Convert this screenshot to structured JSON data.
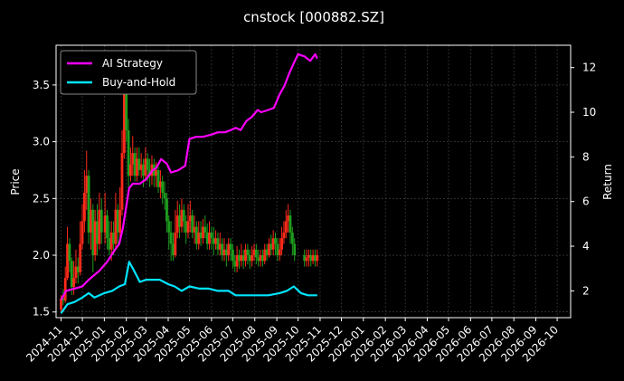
{
  "chart_data": {
    "type": "line",
    "title": "cnstock [000882.SZ]",
    "ylabel_left": "Price",
    "ylabel_right": "Return",
    "y_left_ticks": [
      "1.5",
      "2.0",
      "2.5",
      "3.0",
      "3.5"
    ],
    "y_left_range": [
      1.45,
      3.85
    ],
    "y_right_ticks": [
      "2",
      "4",
      "6",
      "8",
      "10",
      "12"
    ],
    "y_right_range": [
      0.8,
      13.0
    ],
    "x_ticks": [
      "2024-11",
      "2024-12",
      "2025-01",
      "2025-02",
      "2025-03",
      "2025-04",
      "2025-05",
      "2025-06",
      "2025-07",
      "2025-08",
      "2025-09",
      "2025-10",
      "2025-11",
      "2025-12",
      "2026-01",
      "2026-02",
      "2026-03",
      "2026-04",
      "2026-05",
      "2026-06",
      "2026-07",
      "2026-08",
      "2026-09",
      "2026-10"
    ],
    "x_range": [
      "2024-10-25",
      "2026-10-20"
    ],
    "grid": true,
    "legend_position": "top-left",
    "colors": {
      "up": "#ff2a1a",
      "down": "#1e9e1e",
      "ai": "#ff00ff",
      "bh": "#00e5ff",
      "grid": "#4a4a4a"
    },
    "series": [
      {
        "name": "AI Strategy",
        "axis": "right",
        "points": [
          [
            "2024-11-01",
            1.6
          ],
          [
            "2024-11-08",
            2.0
          ],
          [
            "2024-11-20",
            2.1
          ],
          [
            "2024-12-01",
            2.2
          ],
          [
            "2024-12-10",
            2.5
          ],
          [
            "2024-12-25",
            2.9
          ],
          [
            "2025-01-05",
            3.3
          ],
          [
            "2025-01-15",
            3.8
          ],
          [
            "2025-01-22",
            4.1
          ],
          [
            "2025-01-27",
            4.8
          ],
          [
            "2025-02-05",
            6.6
          ],
          [
            "2025-02-10",
            6.8
          ],
          [
            "2025-02-20",
            6.8
          ],
          [
            "2025-03-01",
            7.0
          ],
          [
            "2025-03-10",
            7.4
          ],
          [
            "2025-03-15",
            7.5
          ],
          [
            "2025-03-22",
            7.9
          ],
          [
            "2025-03-30",
            7.7
          ],
          [
            "2025-04-05",
            7.3
          ],
          [
            "2025-04-15",
            7.4
          ],
          [
            "2025-04-25",
            7.6
          ],
          [
            "2025-05-01",
            8.8
          ],
          [
            "2025-05-10",
            8.9
          ],
          [
            "2025-05-20",
            8.9
          ],
          [
            "2025-06-01",
            9.0
          ],
          [
            "2025-06-10",
            9.1
          ],
          [
            "2025-06-20",
            9.1
          ],
          [
            "2025-06-28",
            9.2
          ],
          [
            "2025-07-05",
            9.3
          ],
          [
            "2025-07-12",
            9.2
          ],
          [
            "2025-07-20",
            9.6
          ],
          [
            "2025-07-28",
            9.8
          ],
          [
            "2025-08-05",
            10.1
          ],
          [
            "2025-08-10",
            10.0
          ],
          [
            "2025-08-20",
            10.1
          ],
          [
            "2025-08-28",
            10.2
          ],
          [
            "2025-09-05",
            10.8
          ],
          [
            "2025-09-12",
            11.2
          ],
          [
            "2025-09-18",
            11.7
          ],
          [
            "2025-09-25",
            12.2
          ],
          [
            "2025-10-01",
            12.6
          ],
          [
            "2025-10-10",
            12.5
          ],
          [
            "2025-10-18",
            12.3
          ],
          [
            "2025-10-25",
            12.6
          ],
          [
            "2025-10-28",
            12.4
          ]
        ]
      },
      {
        "name": "Buy-and-Hold",
        "axis": "right",
        "points": [
          [
            "2024-11-01",
            1.0
          ],
          [
            "2024-11-10",
            1.4
          ],
          [
            "2024-11-20",
            1.5
          ],
          [
            "2024-12-01",
            1.7
          ],
          [
            "2024-12-10",
            1.9
          ],
          [
            "2024-12-18",
            1.7
          ],
          [
            "2025-01-01",
            1.9
          ],
          [
            "2025-01-12",
            2.0
          ],
          [
            "2025-01-22",
            2.2
          ],
          [
            "2025-01-30",
            2.3
          ],
          [
            "2025-02-05",
            3.3
          ],
          [
            "2025-02-12",
            2.9
          ],
          [
            "2025-02-20",
            2.4
          ],
          [
            "2025-03-01",
            2.5
          ],
          [
            "2025-03-10",
            2.5
          ],
          [
            "2025-03-20",
            2.5
          ],
          [
            "2025-04-01",
            2.3
          ],
          [
            "2025-04-10",
            2.2
          ],
          [
            "2025-04-20",
            2.0
          ],
          [
            "2025-05-01",
            2.2
          ],
          [
            "2025-05-15",
            2.1
          ],
          [
            "2025-05-28",
            2.1
          ],
          [
            "2025-06-10",
            2.0
          ],
          [
            "2025-06-25",
            2.0
          ],
          [
            "2025-07-05",
            1.8
          ],
          [
            "2025-07-20",
            1.8
          ],
          [
            "2025-08-05",
            1.8
          ],
          [
            "2025-08-20",
            1.8
          ],
          [
            "2025-09-05",
            1.9
          ],
          [
            "2025-09-15",
            2.0
          ],
          [
            "2025-09-25",
            2.2
          ],
          [
            "2025-10-05",
            1.9
          ],
          [
            "2025-10-15",
            1.8
          ],
          [
            "2025-10-28",
            1.8
          ]
        ]
      }
    ],
    "candles": [
      [
        "2024-11-01",
        1.52,
        1.62,
        1.65,
        1.5
      ],
      [
        "2024-11-04",
        1.62,
        1.6,
        1.7,
        1.56
      ],
      [
        "2024-11-07",
        1.6,
        1.8,
        1.9,
        1.58
      ],
      [
        "2024-11-10",
        1.8,
        2.1,
        2.25,
        1.78
      ],
      [
        "2024-11-13",
        2.1,
        1.95,
        2.15,
        1.85
      ],
      [
        "2024-11-16",
        1.95,
        1.72,
        1.98,
        1.65
      ],
      [
        "2024-11-19",
        1.72,
        1.8,
        1.95,
        1.65
      ],
      [
        "2024-11-22",
        1.8,
        1.9,
        2.05,
        1.75
      ],
      [
        "2024-11-25",
        1.9,
        1.85,
        1.98,
        1.75
      ],
      [
        "2024-11-28",
        1.85,
        2.1,
        2.3,
        1.82
      ],
      [
        "2024-12-01",
        2.1,
        2.3,
        2.45,
        2.05
      ],
      [
        "2024-12-04",
        2.3,
        2.55,
        2.75,
        2.2
      ],
      [
        "2024-12-07",
        2.55,
        2.7,
        2.92,
        2.4
      ],
      [
        "2024-12-10",
        2.7,
        2.2,
        2.75,
        2.1
      ],
      [
        "2024-12-13",
        2.2,
        2.4,
        2.5,
        2.05
      ],
      [
        "2024-12-16",
        2.4,
        2.0,
        2.45,
        1.85
      ],
      [
        "2024-12-19",
        2.0,
        2.3,
        2.4,
        1.95
      ],
      [
        "2024-12-22",
        2.3,
        2.1,
        2.45,
        2.0
      ],
      [
        "2024-12-25",
        2.1,
        2.4,
        2.55,
        2.05
      ],
      [
        "2024-12-28",
        2.4,
        2.2,
        2.5,
        2.1
      ],
      [
        "2025-01-02",
        2.2,
        2.35,
        2.55,
        2.1
      ],
      [
        "2025-01-05",
        2.35,
        2.15,
        2.4,
        2.05
      ],
      [
        "2025-01-08",
        2.15,
        2.05,
        2.3,
        2.0
      ],
      [
        "2025-01-11",
        2.05,
        2.2,
        2.3,
        1.95
      ],
      [
        "2025-01-14",
        2.2,
        2.1,
        2.3,
        2.0
      ],
      [
        "2025-01-17",
        2.1,
        2.4,
        2.55,
        2.05
      ],
      [
        "2025-01-20",
        2.4,
        2.2,
        2.45,
        2.1
      ],
      [
        "2025-01-23",
        2.2,
        2.4,
        2.6,
        2.15
      ],
      [
        "2025-01-26",
        2.4,
        2.9,
        3.1,
        2.35
      ],
      [
        "2025-01-29",
        2.9,
        3.5,
        3.7,
        2.85
      ],
      [
        "2025-02-01",
        3.5,
        3.1,
        3.6,
        3.0
      ],
      [
        "2025-02-04",
        3.1,
        2.7,
        3.2,
        2.6
      ],
      [
        "2025-02-07",
        2.7,
        2.8,
        2.95,
        2.65
      ],
      [
        "2025-02-10",
        2.8,
        2.9,
        3.05,
        2.7
      ],
      [
        "2025-02-13",
        2.9,
        2.7,
        2.95,
        2.65
      ],
      [
        "2025-02-16",
        2.7,
        2.85,
        2.95,
        2.65
      ],
      [
        "2025-02-19",
        2.85,
        2.75,
        2.95,
        2.7
      ],
      [
        "2025-02-22",
        2.75,
        2.8,
        2.9,
        2.68
      ],
      [
        "2025-02-25",
        2.8,
        2.7,
        2.85,
        2.6
      ],
      [
        "2025-02-28",
        2.7,
        2.85,
        2.95,
        2.65
      ],
      [
        "2025-03-03",
        2.85,
        2.75,
        2.9,
        2.65
      ],
      [
        "2025-03-06",
        2.75,
        2.7,
        2.85,
        2.6
      ],
      [
        "2025-03-09",
        2.7,
        2.8,
        2.88,
        2.62
      ],
      [
        "2025-03-12",
        2.8,
        2.7,
        2.85,
        2.6
      ],
      [
        "2025-03-15",
        2.7,
        2.75,
        2.82,
        2.6
      ],
      [
        "2025-03-18",
        2.75,
        2.6,
        2.78,
        2.55
      ],
      [
        "2025-03-21",
        2.6,
        2.65,
        2.75,
        2.5
      ],
      [
        "2025-03-24",
        2.65,
        2.55,
        2.7,
        2.45
      ],
      [
        "2025-03-27",
        2.55,
        2.5,
        2.65,
        2.4
      ],
      [
        "2025-03-30",
        2.5,
        2.3,
        2.55,
        2.2
      ],
      [
        "2025-04-02",
        2.3,
        2.2,
        2.35,
        2.05
      ],
      [
        "2025-04-05",
        2.2,
        2.1,
        2.3,
        1.95
      ],
      [
        "2025-04-08",
        2.1,
        2.0,
        2.2,
        1.95
      ],
      [
        "2025-04-11",
        2.0,
        2.2,
        2.4,
        1.98
      ],
      [
        "2025-04-14",
        2.2,
        2.35,
        2.48,
        2.15
      ],
      [
        "2025-04-17",
        2.35,
        2.25,
        2.45,
        2.15
      ],
      [
        "2025-04-20",
        2.25,
        2.4,
        2.5,
        2.2
      ],
      [
        "2025-04-23",
        2.4,
        2.3,
        2.45,
        2.2
      ],
      [
        "2025-04-26",
        2.3,
        2.2,
        2.35,
        2.1
      ],
      [
        "2025-04-29",
        2.2,
        2.3,
        2.45,
        2.15
      ],
      [
        "2025-05-02",
        2.3,
        2.35,
        2.48,
        2.2
      ],
      [
        "2025-05-05",
        2.35,
        2.2,
        2.4,
        2.15
      ],
      [
        "2025-05-08",
        2.2,
        2.25,
        2.35,
        2.1
      ],
      [
        "2025-05-11",
        2.25,
        2.1,
        2.3,
        2.05
      ],
      [
        "2025-05-14",
        2.1,
        2.2,
        2.3,
        2.05
      ],
      [
        "2025-05-17",
        2.2,
        2.15,
        2.3,
        2.08
      ],
      [
        "2025-05-20",
        2.15,
        2.25,
        2.32,
        2.1
      ],
      [
        "2025-05-23",
        2.25,
        2.2,
        2.35,
        2.15
      ],
      [
        "2025-05-26",
        2.2,
        2.1,
        2.28,
        2.05
      ],
      [
        "2025-05-29",
        2.1,
        2.2,
        2.3,
        2.05
      ],
      [
        "2025-06-01",
        2.2,
        2.15,
        2.25,
        2.05
      ],
      [
        "2025-06-04",
        2.15,
        2.1,
        2.25,
        2.0
      ],
      [
        "2025-06-07",
        2.1,
        2.15,
        2.22,
        2.05
      ],
      [
        "2025-06-10",
        2.15,
        2.05,
        2.2,
        2.0
      ],
      [
        "2025-06-13",
        2.05,
        2.1,
        2.2,
        2.0
      ],
      [
        "2025-06-16",
        2.1,
        2.0,
        2.15,
        1.95
      ],
      [
        "2025-06-19",
        2.0,
        2.05,
        2.15,
        1.95
      ],
      [
        "2025-06-22",
        2.05,
        2.0,
        2.1,
        1.9
      ],
      [
        "2025-06-25",
        2.0,
        2.1,
        2.15,
        1.95
      ],
      [
        "2025-06-28",
        2.1,
        2.05,
        2.15,
        1.95
      ],
      [
        "2025-07-01",
        2.05,
        1.95,
        2.1,
        1.88
      ],
      [
        "2025-07-04",
        1.95,
        1.9,
        2.0,
        1.85
      ],
      [
        "2025-07-07",
        1.9,
        2.0,
        2.08,
        1.85
      ],
      [
        "2025-07-10",
        2.0,
        1.95,
        2.05,
        1.88
      ],
      [
        "2025-07-13",
        1.95,
        2.0,
        2.1,
        1.9
      ],
      [
        "2025-07-16",
        2.0,
        1.95,
        2.05,
        1.88
      ],
      [
        "2025-07-19",
        1.95,
        2.05,
        2.1,
        1.9
      ],
      [
        "2025-07-22",
        2.05,
        2.0,
        2.1,
        1.92
      ],
      [
        "2025-07-25",
        2.0,
        1.95,
        2.05,
        1.88
      ],
      [
        "2025-07-28",
        1.95,
        2.0,
        2.08,
        1.9
      ],
      [
        "2025-07-31",
        2.0,
        2.05,
        2.1,
        1.95
      ],
      [
        "2025-08-03",
        2.05,
        1.98,
        2.1,
        1.92
      ],
      [
        "2025-08-06",
        1.98,
        1.95,
        2.05,
        1.9
      ],
      [
        "2025-08-09",
        1.95,
        2.0,
        2.05,
        1.9
      ],
      [
        "2025-08-12",
        2.0,
        1.95,
        2.05,
        1.9
      ],
      [
        "2025-08-15",
        1.95,
        2.05,
        2.1,
        1.92
      ],
      [
        "2025-08-18",
        2.05,
        2.0,
        2.1,
        1.95
      ],
      [
        "2025-08-21",
        2.0,
        2.1,
        2.15,
        1.98
      ],
      [
        "2025-08-24",
        2.1,
        2.05,
        2.18,
        2.0
      ],
      [
        "2025-08-27",
        2.05,
        2.15,
        2.22,
        2.0
      ],
      [
        "2025-08-30",
        2.15,
        2.1,
        2.2,
        2.0
      ],
      [
        "2025-09-02",
        2.1,
        2.0,
        2.15,
        1.95
      ],
      [
        "2025-09-05",
        2.0,
        2.05,
        2.15,
        1.95
      ],
      [
        "2025-09-08",
        2.05,
        2.15,
        2.25,
        2.0
      ],
      [
        "2025-09-11",
        2.15,
        2.2,
        2.3,
        2.1
      ],
      [
        "2025-09-14",
        2.2,
        2.3,
        2.4,
        2.15
      ],
      [
        "2025-09-17",
        2.3,
        2.35,
        2.45,
        2.2
      ],
      [
        "2025-09-20",
        2.35,
        2.2,
        2.4,
        2.1
      ],
      [
        "2025-09-23",
        2.2,
        2.1,
        2.25,
        2.0
      ],
      [
        "2025-09-26",
        2.1,
        2.0,
        2.15,
        1.95
      ],
      [
        "2025-10-10",
        2.0,
        1.95,
        2.05,
        1.9
      ],
      [
        "2025-10-13",
        1.95,
        1.98,
        2.05,
        1.9
      ],
      [
        "2025-10-16",
        1.98,
        2.0,
        2.05,
        1.9
      ],
      [
        "2025-10-19",
        2.0,
        1.95,
        2.05,
        1.9
      ],
      [
        "2025-10-22",
        1.95,
        2.0,
        2.05,
        1.92
      ],
      [
        "2025-10-25",
        2.0,
        1.95,
        2.05,
        1.9
      ],
      [
        "2025-10-28",
        1.95,
        2.0,
        2.05,
        1.9
      ]
    ]
  }
}
